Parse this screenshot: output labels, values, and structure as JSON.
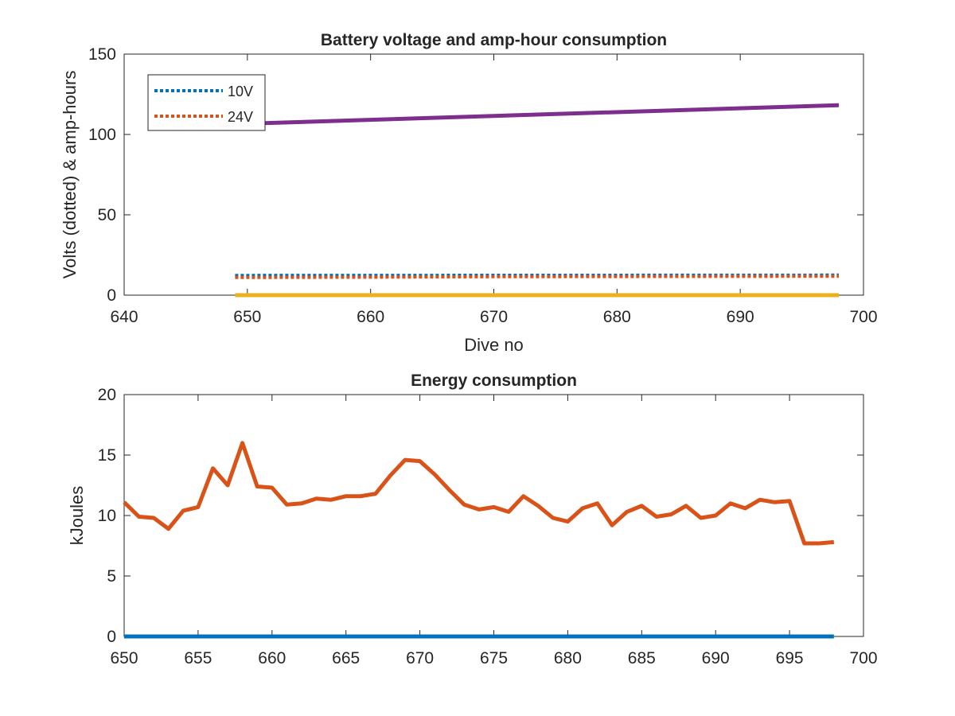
{
  "chart_data": [
    {
      "type": "line",
      "title": "Battery voltage and amp-hour consumption",
      "xlabel": "Dive no",
      "ylabel": "Volts (dotted) & amp-hours",
      "xlim": [
        640,
        700
      ],
      "ylim": [
        0,
        150
      ],
      "xticks": [
        "640",
        "650",
        "660",
        "670",
        "680",
        "690",
        "700"
      ],
      "yticks": [
        "0",
        "50",
        "100",
        "150"
      ],
      "legend_position": "top-left",
      "series": [
        {
          "name": "10V",
          "style": "dotted",
          "color": "#0072BD",
          "x": [
            649,
            698
          ],
          "values": [
            12.3,
            12.5
          ]
        },
        {
          "name": "24V",
          "style": "dotted",
          "color": "#D95319",
          "x": [
            649,
            660,
            670,
            680,
            698
          ],
          "values": [
            11.0,
            11.2,
            11.5,
            11.6,
            11.8
          ]
        },
        {
          "style": "solid",
          "color": "#EDB120",
          "x": [
            649,
            698
          ],
          "values": [
            0,
            0
          ]
        },
        {
          "style": "solid",
          "color": "#7E2F8E",
          "x": [
            649,
            698
          ],
          "values": [
            106.5,
            118.2
          ]
        }
      ]
    },
    {
      "type": "line",
      "title": "Energy consumption",
      "xlabel": "",
      "ylabel": "kJoules",
      "xlim": [
        650,
        700
      ],
      "ylim": [
        0,
        20
      ],
      "xticks": [
        "650",
        "655",
        "660",
        "665",
        "670",
        "675",
        "680",
        "685",
        "690",
        "695",
        "700"
      ],
      "yticks": [
        "0",
        "5",
        "10",
        "15",
        "20"
      ],
      "series": [
        {
          "style": "solid",
          "color": "#D95319",
          "x": [
            650,
            651,
            652,
            653,
            654,
            655,
            656,
            657,
            658,
            659,
            660,
            661,
            662,
            663,
            664,
            665,
            666,
            667,
            668,
            669,
            670,
            671,
            672,
            673,
            674,
            675,
            676,
            677,
            678,
            679,
            680,
            681,
            682,
            683,
            684,
            685,
            686,
            687,
            688,
            689,
            690,
            691,
            692,
            693,
            694,
            695,
            696,
            697,
            698
          ],
          "values": [
            11.1,
            9.9,
            9.8,
            8.9,
            10.4,
            10.7,
            13.9,
            12.5,
            16.0,
            12.4,
            12.3,
            10.9,
            11.0,
            11.4,
            11.3,
            11.6,
            11.6,
            11.8,
            13.3,
            14.6,
            14.5,
            13.4,
            12.1,
            10.9,
            10.5,
            10.7,
            10.3,
            11.6,
            10.8,
            9.8,
            9.5,
            10.6,
            11.0,
            9.2,
            10.3,
            10.8,
            9.9,
            10.1,
            10.8,
            9.8,
            10.0,
            11.0,
            10.6,
            11.3,
            11.1,
            11.2,
            7.7,
            7.7,
            7.8
          ]
        },
        {
          "style": "solid",
          "color": "#0072BD",
          "x": [
            650,
            698
          ],
          "values": [
            0,
            0
          ]
        }
      ]
    }
  ]
}
